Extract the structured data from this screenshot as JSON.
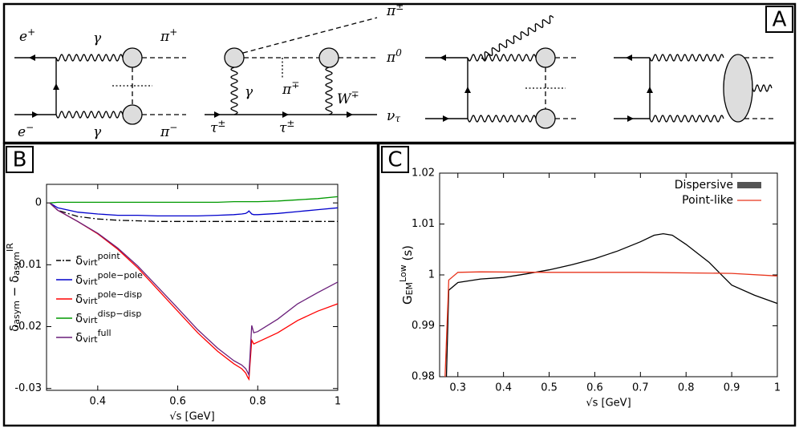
{
  "panels": [
    "A",
    "B",
    "C"
  ],
  "diagrams": [
    [
      [
        {
          "text": "e"
        },
        {
          "text": "+",
          "pos": "sup"
        }
      ],
      [
        {
          "text": "γ"
        }
      ],
      [
        {
          "text": "π"
        },
        {
          "text": "+",
          "pos": "sup"
        }
      ],
      [
        {
          "text": "e"
        },
        {
          "text": "−",
          "pos": "sup"
        }
      ],
      [
        {
          "text": "γ"
        }
      ],
      [
        {
          "text": "π"
        },
        {
          "text": "−",
          "pos": "sup"
        }
      ]
    ],
    [
      [
        {
          "text": "π"
        },
        {
          "text": "±",
          "pos": "sup"
        }
      ],
      [
        {
          "text": "π"
        },
        {
          "text": "0",
          "pos": "sup"
        }
      ],
      [
        {
          "text": "π"
        },
        {
          "text": "∓",
          "pos": "sup"
        }
      ],
      [
        {
          "text": "γ"
        }
      ],
      [
        {
          "text": "W"
        },
        {
          "text": "∓",
          "pos": "sup"
        }
      ],
      [
        {
          "text": "τ"
        },
        {
          "text": "±",
          "pos": "sup"
        }
      ],
      [
        {
          "text": "τ"
        },
        {
          "text": "±",
          "pos": "sup"
        }
      ],
      [
        {
          "text": "ν"
        },
        {
          "text": "τ",
          "pos": "sub"
        }
      ]
    ]
  ],
  "chart_data": [
    {
      "type": "line",
      "xlabel": "√s [GeV]",
      "ylabel": [
        {
          "text": "δ"
        },
        {
          "text": "asym",
          "pos": "sub"
        },
        {
          "text": " − δ"
        },
        {
          "text": "asym",
          "pos": "sub"
        },
        {
          "text": "IR",
          "pos": "sup"
        }
      ],
      "xlim": [
        0.272,
        1
      ],
      "ylim": [
        -0.0303,
        0.003
      ],
      "xticks": [
        0.4,
        0.6,
        0.8,
        1
      ],
      "yticks": [
        0,
        -0.01,
        -0.02,
        -0.03
      ],
      "legend": "center left",
      "x": [
        0.28,
        0.3,
        0.35,
        0.4,
        0.45,
        0.5,
        0.55,
        0.6,
        0.65,
        0.7,
        0.74,
        0.76,
        0.77,
        0.775,
        0.778,
        0.785,
        0.79,
        0.8,
        0.85,
        0.9,
        0.95,
        1
      ],
      "series": [
        {
          "name": [
            {
              "text": "δ"
            },
            {
              "text": "virt",
              "pos": "sub"
            },
            {
              "text": "point",
              "pos": "sup"
            }
          ],
          "color": "#000000",
          "dash": "dashdot",
          "values": [
            0,
            -0.0012,
            -0.0022,
            -0.0026,
            -0.0028,
            -0.0029,
            -0.003,
            -0.003,
            -0.003,
            -0.003,
            -0.003,
            -0.003,
            -0.003,
            -0.003,
            -0.003,
            -0.003,
            -0.003,
            -0.003,
            -0.003,
            -0.003,
            -0.003,
            -0.003
          ]
        },
        {
          "name": [
            {
              "text": "δ"
            },
            {
              "text": "virt",
              "pos": "sub"
            },
            {
              "text": "pole−pole",
              "pos": "sup"
            }
          ],
          "color": "#0000cc",
          "values": [
            0,
            -0.0008,
            -0.0015,
            -0.0018,
            -0.002,
            -0.002,
            -0.0021,
            -0.0021,
            -0.0021,
            -0.002,
            -0.0019,
            -0.0018,
            -0.0017,
            -0.0015,
            -0.0013,
            -0.0018,
            -0.0019,
            -0.0019,
            -0.0017,
            -0.0014,
            -0.0011,
            -0.0008
          ]
        },
        {
          "name": [
            {
              "text": "δ"
            },
            {
              "text": "virt",
              "pos": "sub"
            },
            {
              "text": "pole−disp",
              "pos": "sup"
            }
          ],
          "color": "#ff0000",
          "values": [
            0,
            -0.0012,
            -0.003,
            -0.005,
            -0.0075,
            -0.0105,
            -0.014,
            -0.0175,
            -0.021,
            -0.024,
            -0.026,
            -0.0268,
            -0.0275,
            -0.0282,
            -0.0285,
            -0.0222,
            -0.0228,
            -0.0225,
            -0.021,
            -0.019,
            -0.0175,
            -0.0163
          ]
        },
        {
          "name": [
            {
              "text": "δ"
            },
            {
              "text": "virt",
              "pos": "sub"
            },
            {
              "text": "disp−disp",
              "pos": "sup"
            }
          ],
          "color": "#009900",
          "values": [
            0,
            0.0001,
            0.0001,
            0.0001,
            0.0001,
            0.0001,
            0.0001,
            0.0001,
            0.0001,
            0.0001,
            0.0002,
            0.0002,
            0.0002,
            0.0002,
            0.0002,
            0.0002,
            0.0002,
            0.0002,
            0.0003,
            0.0005,
            0.0007,
            0.001
          ]
        },
        {
          "name": [
            {
              "text": "δ"
            },
            {
              "text": "virt",
              "pos": "sub"
            },
            {
              "text": "full",
              "pos": "sup"
            }
          ],
          "color": "#6a1f7a",
          "values": [
            0,
            -0.0012,
            -0.003,
            -0.0049,
            -0.0073,
            -0.0102,
            -0.0136,
            -0.017,
            -0.0205,
            -0.0235,
            -0.0255,
            -0.0262,
            -0.0268,
            -0.0274,
            -0.0278,
            -0.0198,
            -0.021,
            -0.0208,
            -0.0188,
            -0.0163,
            -0.0145,
            -0.0128
          ]
        }
      ]
    },
    {
      "type": "line",
      "xlabel": "√s [GeV]",
      "ylabel": [
        {
          "text": "G"
        },
        {
          "text": "EM",
          "pos": "sub"
        },
        {
          "text": "Low",
          "pos": "sup"
        },
        {
          "text": " (s)"
        }
      ],
      "xlim": [
        0.26,
        1
      ],
      "ylim": [
        0.98,
        1.02
      ],
      "xticks": [
        0.3,
        0.4,
        0.5,
        0.6,
        0.7,
        0.8,
        0.9,
        1
      ],
      "yticks": [
        0.98,
        0.99,
        1,
        1.01,
        1.02
      ],
      "legend": "upper right",
      "series": [
        {
          "name": [
            {
              "text": "Dispersive"
            }
          ],
          "color": "#000000",
          "legend_color": "#555555",
          "x": [
            0.275,
            0.28,
            0.3,
            0.35,
            0.4,
            0.45,
            0.5,
            0.55,
            0.6,
            0.65,
            0.7,
            0.73,
            0.75,
            0.77,
            0.8,
            0.85,
            0.88,
            0.9,
            0.95,
            1
          ],
          "values": [
            0.98,
            0.997,
            0.9985,
            0.9992,
            0.9995,
            1.0002,
            1.001,
            1.002,
            1.0032,
            1.0047,
            1.0065,
            1.0078,
            1.0081,
            1.0078,
            1.006,
            1.0025,
            0.9998,
            0.998,
            0.996,
            0.9944
          ]
        },
        {
          "name": [
            {
              "text": "Point-like"
            }
          ],
          "color": "#e8341c",
          "x": [
            0.272,
            0.28,
            0.3,
            0.35,
            0.5,
            0.7,
            0.9,
            1
          ],
          "values": [
            0.98,
            0.999,
            1.0005,
            1.0006,
            1.0005,
            1.0005,
            1.0003,
            0.9998
          ]
        }
      ]
    }
  ]
}
